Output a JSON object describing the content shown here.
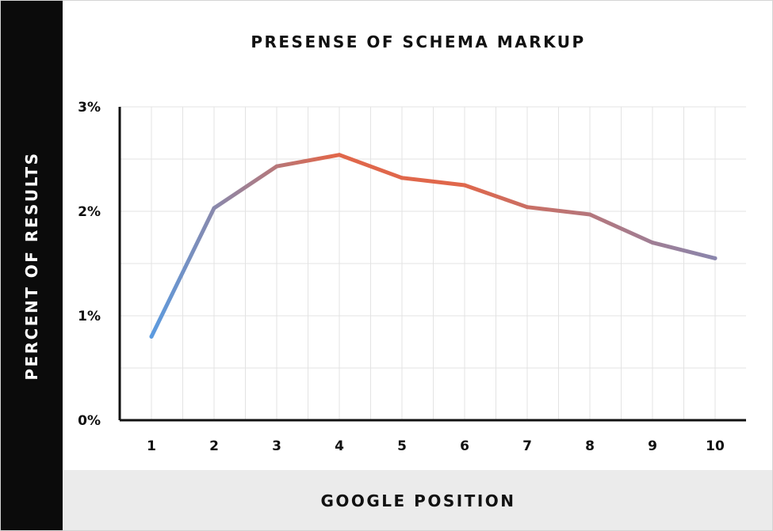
{
  "chart_data": {
    "type": "line",
    "title": "PRESENSE OF SCHEMA MARKUP",
    "xlabel": "GOOGLE POSITION",
    "ylabel": "PERCENT OF RESULTS",
    "x": [
      1,
      2,
      3,
      4,
      5,
      6,
      7,
      8,
      9,
      10
    ],
    "series": [
      {
        "values": [
          0.8,
          2.03,
          2.43,
          2.54,
          2.32,
          2.25,
          2.04,
          1.97,
          1.7,
          1.55
        ]
      }
    ],
    "x_tick_labels": [
      "1",
      "2",
      "3",
      "4",
      "5",
      "6",
      "7",
      "8",
      "9",
      "10"
    ],
    "y_tick_labels": [
      "0%",
      "1%",
      "2%",
      "3%"
    ],
    "ylim": [
      0,
      3
    ],
    "grid": true,
    "legend": "none",
    "colors": {
      "line_start": "#5b9be0",
      "line_peak": "#e0674b",
      "line_end": "#8a86ad",
      "grid": "#e3e3e3",
      "axis": "#111111",
      "ylabel_background": "#0b0b0b",
      "xlabel_background": "#ebebeb"
    }
  }
}
